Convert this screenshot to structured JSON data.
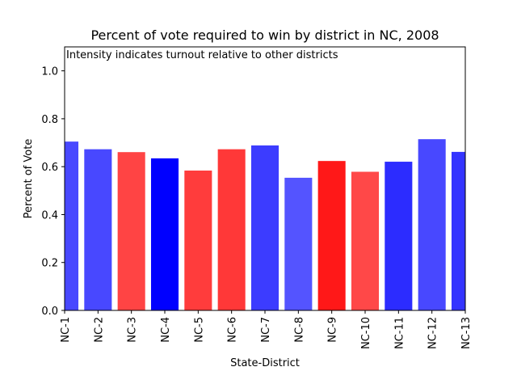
{
  "chart_data": {
    "type": "bar",
    "title": "Percent of vote required to win by district in NC, 2008",
    "annotation": "Intensity indicates turnout relative to other districts",
    "xlabel": "State-District",
    "ylabel": "Percent of Vote",
    "ylim": [
      0,
      1.1
    ],
    "yticks": [
      0.0,
      0.2,
      0.4,
      0.6,
      0.8,
      1.0
    ],
    "ytick_labels": [
      "0.0",
      "0.2",
      "0.4",
      "0.6",
      "0.8",
      "1.0"
    ],
    "grid": false,
    "categories": [
      "NC-1",
      "NC-2",
      "NC-3",
      "NC-4",
      "NC-5",
      "NC-6",
      "NC-7",
      "NC-8",
      "NC-9",
      "NC-10",
      "NC-11",
      "NC-12",
      "NC-13"
    ],
    "values": [
      0.703,
      0.671,
      0.659,
      0.633,
      0.582,
      0.671,
      0.687,
      0.552,
      0.622,
      0.577,
      0.619,
      0.713,
      0.66
    ],
    "colors": [
      "#4848ff",
      "#4848ff",
      "#ff4444",
      "#0000ff",
      "#ff3c3c",
      "#ff3838",
      "#3c3cff",
      "#5454ff",
      "#ff1818",
      "#ff4848",
      "#2c2cff",
      "#4848ff",
      "#3434ff"
    ]
  }
}
